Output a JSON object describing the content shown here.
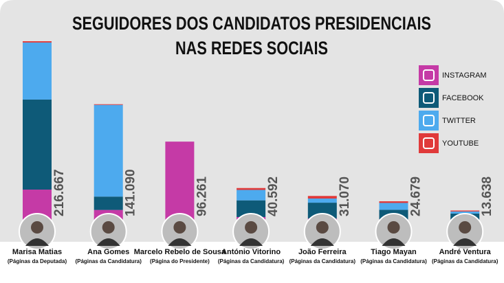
{
  "chart_data": {
    "type": "stacked-bar",
    "title": [
      "SEGUIDORES DOS CANDIDATOS PRESIDENCIAIS",
      "NAS REDES SOCIAIS"
    ],
    "categories": [
      "Marisa Matias",
      "Ana Gomes",
      "Marcelo Rebelo de Sousa",
      "António Vitorino",
      "João Ferreira",
      "Tiago Mayan",
      "André Ventura"
    ],
    "category_notes": [
      "(Páginas da Deputada)",
      "(Páginas da Candidatura)",
      "(Página do Presidente)",
      "(Páginas da Candidatura)",
      "(Páginas da Candidatura)",
      "(Páginas da Candidatura)",
      "(Páginas da Candidatura)"
    ],
    "series": [
      {
        "name": "INSTAGRAM",
        "color": "#c53aa6",
        "values": [
          38700,
          14300,
          96261,
          5800,
          4000,
          3000,
          2000
        ]
      },
      {
        "name": "FACEBOOK",
        "color": "#0e5a78",
        "values": [
          108000,
          16000,
          0,
          20000,
          19000,
          11500,
          8000
        ]
      },
      {
        "name": "TWITTER",
        "color": "#4daaee",
        "values": [
          68400,
          110000,
          0,
          12500,
          5000,
          8200,
          2500
        ]
      },
      {
        "name": "YOUTUBE",
        "color": "#e03a3a",
        "values": [
          1567,
          790,
          0,
          2292,
          3070,
          1979,
          1138
        ]
      }
    ],
    "totals": {
      "values": [
        216667,
        141090,
        96261,
        40592,
        31070,
        24679,
        13638
      ],
      "value_labels": [
        "216.667",
        "141.090",
        "96.261",
        "40.592",
        "31.070",
        "24.679",
        "13.638"
      ]
    }
  }
}
